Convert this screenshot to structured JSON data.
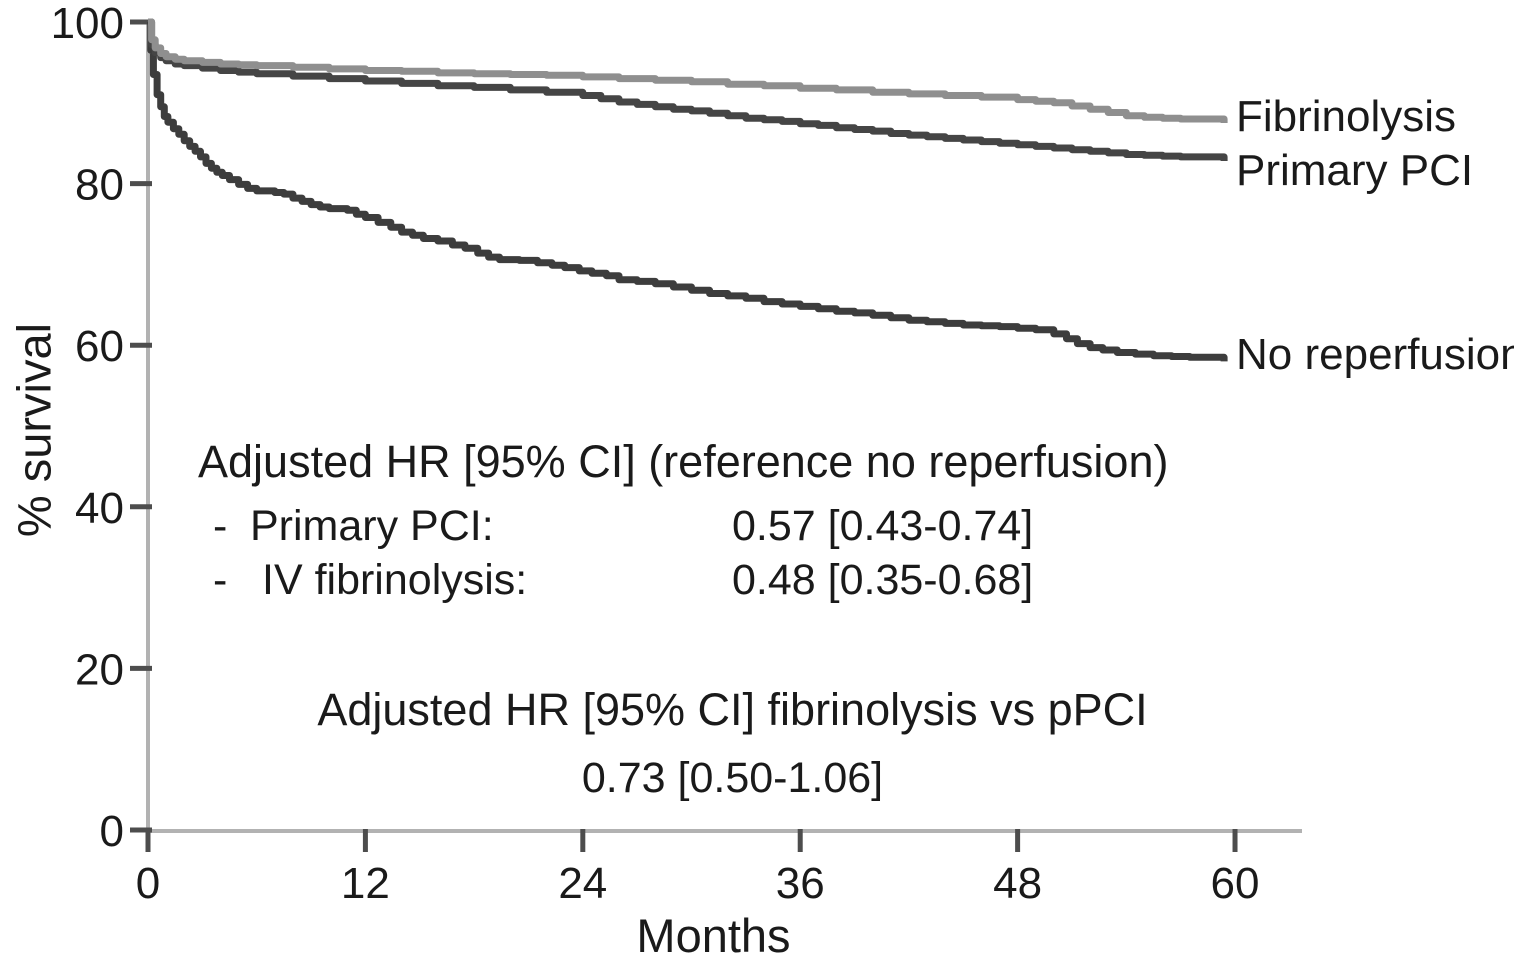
{
  "figure": {
    "background": "#ffffff",
    "text_color": "#1a1a1a",
    "axis_color": "#b2b2b2",
    "tick_color": "#4d4d4d"
  },
  "chart_data": {
    "type": "line",
    "subtype": "kaplan-meier-step",
    "title": "",
    "xlabel": "Months",
    "ylabel": "% survival",
    "xlim": [
      0,
      64
    ],
    "ylim": [
      0,
      100
    ],
    "xticks": [
      0,
      12,
      24,
      36,
      48,
      60
    ],
    "yticks": [
      0,
      20,
      40,
      60,
      80,
      100
    ],
    "grid": false,
    "legend_position": "right-of-curve-ends",
    "series": [
      {
        "name": "Fibrinolysis",
        "color": "#8f8f8f",
        "end_value_pct": 88,
        "points": [
          [
            0,
            100
          ],
          [
            0.2,
            97.8
          ],
          [
            0.4,
            96.8
          ],
          [
            0.7,
            96.1
          ],
          [
            1,
            95.7
          ],
          [
            1.5,
            95.4
          ],
          [
            2,
            95.2
          ],
          [
            3,
            95.0
          ],
          [
            4,
            94.8
          ],
          [
            5,
            94.7
          ],
          [
            6,
            94.6
          ],
          [
            8,
            94.4
          ],
          [
            10,
            94.2
          ],
          [
            12,
            94.0
          ],
          [
            14,
            93.9
          ],
          [
            16,
            93.7
          ],
          [
            18,
            93.6
          ],
          [
            20,
            93.5
          ],
          [
            22,
            93.4
          ],
          [
            24,
            93.2
          ],
          [
            26,
            93.0
          ],
          [
            28,
            92.8
          ],
          [
            30,
            92.6
          ],
          [
            32,
            92.3
          ],
          [
            34,
            92.1
          ],
          [
            36,
            91.8
          ],
          [
            38,
            91.6
          ],
          [
            40,
            91.3
          ],
          [
            42,
            91.1
          ],
          [
            44,
            90.9
          ],
          [
            46,
            90.7
          ],
          [
            48,
            90.4
          ],
          [
            49,
            90.2
          ],
          [
            50,
            90.0
          ],
          [
            51,
            89.6
          ],
          [
            52,
            89.2
          ],
          [
            53,
            88.8
          ],
          [
            54,
            88.4
          ],
          [
            55,
            88.2
          ],
          [
            56,
            88.1
          ],
          [
            57,
            88.0
          ],
          [
            59.2,
            88.0
          ],
          [
            59.4,
            87.5
          ]
        ]
      },
      {
        "name": "Primary PCI",
        "color": "#454545",
        "end_value_pct": 83,
        "points": [
          [
            0,
            100
          ],
          [
            0.2,
            97.2
          ],
          [
            0.4,
            96.2
          ],
          [
            0.7,
            95.6
          ],
          [
            1,
            95.2
          ],
          [
            1.5,
            94.8
          ],
          [
            2,
            94.6
          ],
          [
            3,
            94.3
          ],
          [
            4,
            94.0
          ],
          [
            5,
            93.8
          ],
          [
            6,
            93.6
          ],
          [
            8,
            93.3
          ],
          [
            10,
            93.0
          ],
          [
            12,
            92.7
          ],
          [
            14,
            92.4
          ],
          [
            16,
            92.1
          ],
          [
            18,
            91.9
          ],
          [
            20,
            91.6
          ],
          [
            22,
            91.3
          ],
          [
            24,
            90.9
          ],
          [
            25,
            90.5
          ],
          [
            26,
            90.1
          ],
          [
            27,
            89.8
          ],
          [
            28,
            89.5
          ],
          [
            29,
            89.2
          ],
          [
            30,
            89.0
          ],
          [
            31,
            88.7
          ],
          [
            32,
            88.4
          ],
          [
            33,
            88.1
          ],
          [
            34,
            87.9
          ],
          [
            35,
            87.7
          ],
          [
            36,
            87.4
          ],
          [
            37,
            87.2
          ],
          [
            38,
            86.9
          ],
          [
            39,
            86.7
          ],
          [
            40,
            86.5
          ],
          [
            41,
            86.2
          ],
          [
            42,
            86.0
          ],
          [
            43,
            85.8
          ],
          [
            44,
            85.6
          ],
          [
            45,
            85.4
          ],
          [
            46,
            85.2
          ],
          [
            47,
            85.0
          ],
          [
            48,
            84.8
          ],
          [
            49,
            84.6
          ],
          [
            50,
            84.4
          ],
          [
            51,
            84.2
          ],
          [
            52,
            84.0
          ],
          [
            53,
            83.8
          ],
          [
            54,
            83.6
          ],
          [
            55,
            83.5
          ],
          [
            56,
            83.4
          ],
          [
            57,
            83.3
          ],
          [
            59.2,
            83.3
          ],
          [
            59.4,
            82.8
          ]
        ]
      },
      {
        "name": "No reperfusion",
        "color": "#3d3d3d",
        "end_value_pct": 59,
        "points": [
          [
            0,
            100
          ],
          [
            0.15,
            96.5
          ],
          [
            0.3,
            93.5
          ],
          [
            0.5,
            91.0
          ],
          [
            0.7,
            89.5
          ],
          [
            0.9,
            88.3
          ],
          [
            1.1,
            87.6
          ],
          [
            1.4,
            86.8
          ],
          [
            1.7,
            86.1
          ],
          [
            2,
            85.3
          ],
          [
            2.3,
            84.6
          ],
          [
            2.6,
            84.0
          ],
          [
            2.9,
            83.3
          ],
          [
            3.2,
            82.5
          ],
          [
            3.5,
            81.9
          ],
          [
            3.8,
            81.4
          ],
          [
            4.1,
            81.0
          ],
          [
            4.5,
            80.5
          ],
          [
            5,
            79.9
          ],
          [
            5.5,
            79.4
          ],
          [
            6,
            79.1
          ],
          [
            7,
            78.9
          ],
          [
            7.5,
            78.7
          ],
          [
            8,
            78.2
          ],
          [
            8.5,
            77.8
          ],
          [
            9,
            77.4
          ],
          [
            9.5,
            77.1
          ],
          [
            10,
            76.9
          ],
          [
            11,
            76.7
          ],
          [
            11.5,
            76.2
          ],
          [
            12,
            75.8
          ],
          [
            12.7,
            75.2
          ],
          [
            13.4,
            74.6
          ],
          [
            14,
            74.0
          ],
          [
            14.6,
            73.6
          ],
          [
            15.2,
            73.2
          ],
          [
            16,
            72.9
          ],
          [
            16.8,
            72.4
          ],
          [
            17.5,
            72.0
          ],
          [
            18.2,
            71.4
          ],
          [
            18.8,
            70.9
          ],
          [
            19.4,
            70.6
          ],
          [
            20.5,
            70.5
          ],
          [
            21.5,
            70.2
          ],
          [
            22.3,
            69.9
          ],
          [
            23,
            69.6
          ],
          [
            23.8,
            69.2
          ],
          [
            24.5,
            68.9
          ],
          [
            25.3,
            68.6
          ],
          [
            26,
            68.1
          ],
          [
            27,
            67.9
          ],
          [
            28,
            67.6
          ],
          [
            29,
            67.2
          ],
          [
            30,
            66.8
          ],
          [
            31,
            66.4
          ],
          [
            32,
            66.1
          ],
          [
            33,
            65.8
          ],
          [
            34,
            65.4
          ],
          [
            35,
            65.1
          ],
          [
            36,
            64.8
          ],
          [
            37,
            64.5
          ],
          [
            38,
            64.2
          ],
          [
            39,
            64.0
          ],
          [
            40,
            63.7
          ],
          [
            41,
            63.4
          ],
          [
            42,
            63.1
          ],
          [
            43,
            62.9
          ],
          [
            44,
            62.7
          ],
          [
            45,
            62.5
          ],
          [
            46,
            62.4
          ],
          [
            47,
            62.3
          ],
          [
            48,
            62.1
          ],
          [
            49,
            61.9
          ],
          [
            50,
            61.4
          ],
          [
            50.7,
            60.8
          ],
          [
            51.3,
            60.2
          ],
          [
            52,
            59.7
          ],
          [
            52.7,
            59.4
          ],
          [
            53.5,
            59.1
          ],
          [
            54.5,
            58.9
          ],
          [
            55.5,
            58.7
          ],
          [
            56.5,
            58.6
          ],
          [
            57.5,
            58.5
          ],
          [
            59.2,
            58.5
          ],
          [
            59.4,
            58.0
          ]
        ]
      }
    ],
    "annotations": {
      "reference_block": {
        "header": "Adjusted HR [95% CI] (reference no reperfusion)",
        "rows": [
          {
            "dash": "-",
            "label": "Primary PCI:",
            "value": "0.57 [0.43-0.74]"
          },
          {
            "dash": "-",
            "label": "IV fibrinolysis:",
            "value": "0.48 [0.35-0.68]"
          }
        ]
      },
      "comparison_block": {
        "header": "Adjusted HR [95% CI] fibrinolysis vs pPCI",
        "value": "0.73 [0.50-1.06]"
      }
    }
  }
}
